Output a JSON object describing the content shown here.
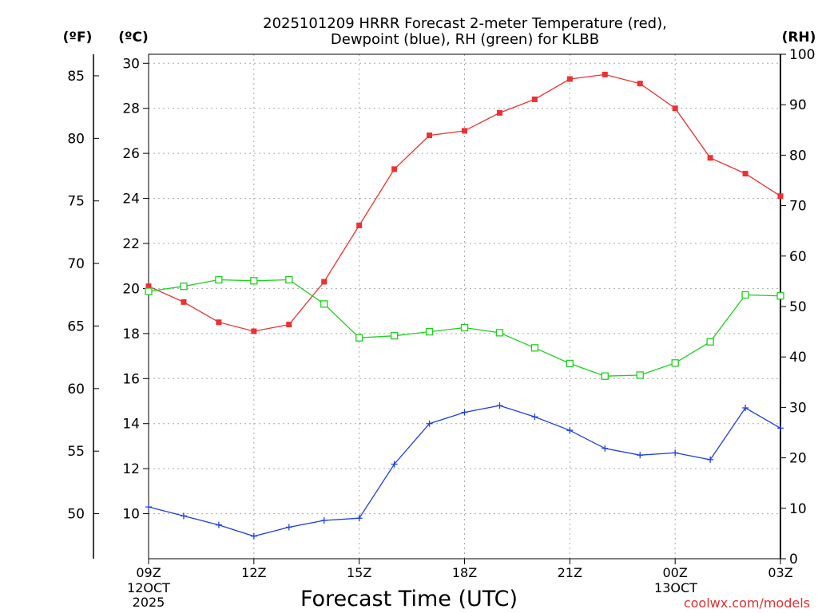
{
  "chart_data": {
    "type": "line",
    "title_line1": "2025101209 HRRR Forecast 2-meter Temperature (red),",
    "title_line2": "Dewpoint (blue), RH (green) for KLBB",
    "left_outer_unit": "(ºF)",
    "left_inner_unit": "(ºC)",
    "right_unit": "(RH)",
    "xlabel": "Forecast Time (UTC)",
    "credit": "coolwx.com/models",
    "x_tick_labels": [
      "09Z",
      "12Z",
      "15Z",
      "18Z",
      "21Z",
      "00Z",
      "03Z"
    ],
    "x_tick_hours": [
      0,
      3,
      6,
      9,
      12,
      15,
      18
    ],
    "date_label_start_1": "12OCT",
    "date_label_start_2": "2025",
    "date_label_mid": "13OCT",
    "x_range_hours": [
      0,
      18
    ],
    "celsius_range": [
      8,
      30.4
    ],
    "celsius_ticks": [
      "10",
      "12",
      "14",
      "16",
      "18",
      "20",
      "22",
      "24",
      "26",
      "28",
      "30"
    ],
    "fahrenheit_ticks": [
      "50",
      "55",
      "60",
      "65",
      "70",
      "75",
      "80",
      "85"
    ],
    "rh_range": [
      0,
      100
    ],
    "rh_ticks": [
      "0",
      "10",
      "20",
      "30",
      "40",
      "50",
      "60",
      "70",
      "80",
      "90",
      "100"
    ],
    "grid": true,
    "series": [
      {
        "name": "Temperature",
        "color": "#ee3030",
        "marker": "filled-square",
        "unit": "C",
        "values": [
          20.1,
          19.4,
          18.5,
          18.1,
          18.4,
          20.3,
          22.8,
          25.3,
          26.8,
          27.0,
          27.8,
          28.4,
          29.3,
          29.5,
          29.1,
          28.0,
          25.8,
          25.1,
          24.1
        ]
      },
      {
        "name": "Dewpoint",
        "color": "#2040e0",
        "marker": "plus",
        "unit": "C",
        "values": [
          10.3,
          9.9,
          9.5,
          9.0,
          9.4,
          9.7,
          9.8,
          12.2,
          14.0,
          14.5,
          14.8,
          14.3,
          13.7,
          12.9,
          12.6,
          12.7,
          12.4,
          14.7,
          13.8
        ]
      },
      {
        "name": "RH",
        "color": "#20d020",
        "marker": "open-square",
        "unit": "%",
        "values": [
          53,
          54,
          55.3,
          55.1,
          55.3,
          50.5,
          43.8,
          44.2,
          45.0,
          45.8,
          44.8,
          41.8,
          38.7,
          36.2,
          36.4,
          38.8,
          43.0,
          52.3,
          52.1
        ]
      }
    ]
  }
}
